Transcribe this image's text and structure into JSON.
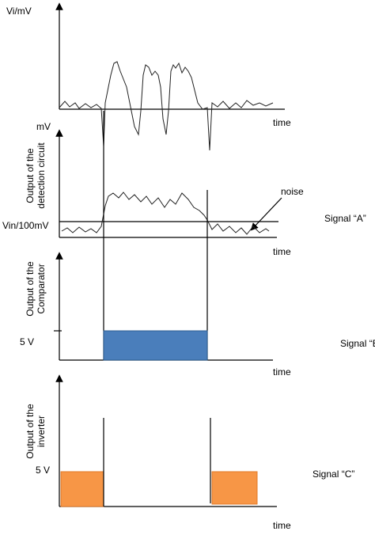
{
  "panels": [
    {
      "y_label": "Vi/mV",
      "x_label": "time"
    },
    {
      "y_unit": "mV",
      "y_label": [
        "Output of the",
        "detection circuit"
      ],
      "threshold_label": "Vin/100mV",
      "annotation": "noise",
      "signal": "Signal “A”",
      "x_label": "time"
    },
    {
      "y_label": [
        "Output of the",
        "Comparator"
      ],
      "level_label": "5 V",
      "signal": "Signal “B”",
      "x_label": "time"
    },
    {
      "y_label": [
        "Output of the",
        "inverter"
      ],
      "level_label": "5 V",
      "signal": "Signal “C”",
      "x_label": "time"
    }
  ]
}
